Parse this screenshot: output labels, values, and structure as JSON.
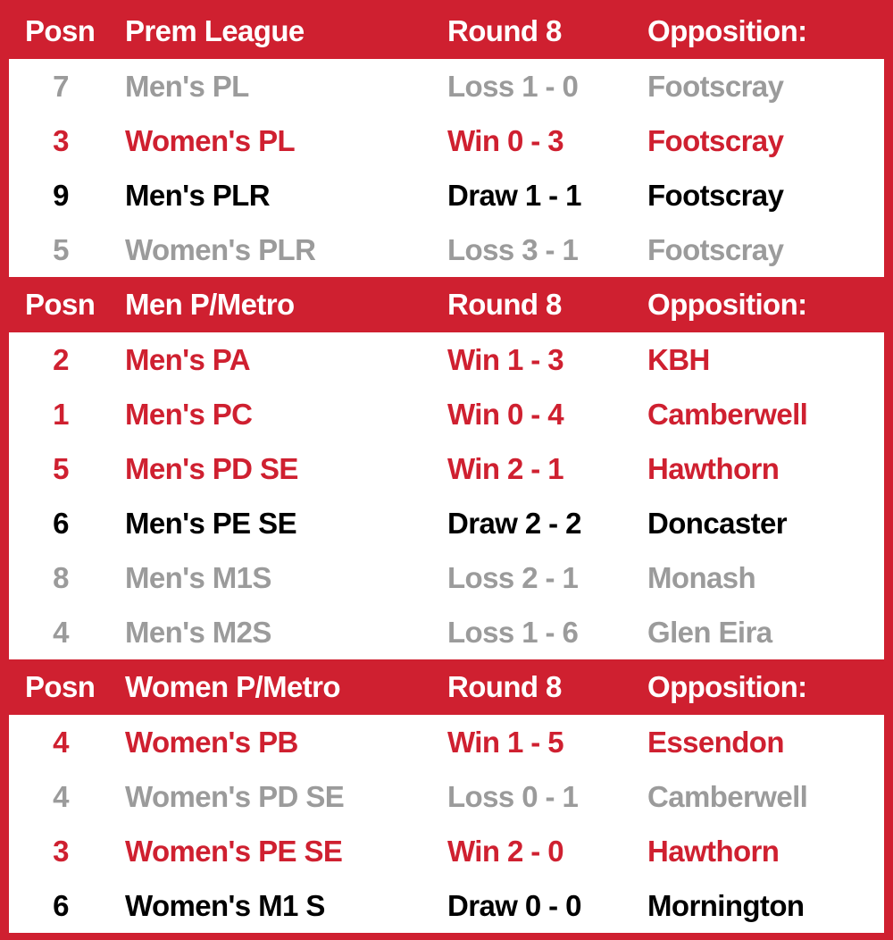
{
  "colors": {
    "brand_red": "#cf2030",
    "win": "#cf2030",
    "loss": "#9b9b9b",
    "draw": "#000000"
  },
  "sections": [
    {
      "header": {
        "posn": "Posn",
        "league": "Prem League",
        "round": "Round 8",
        "opposition": "Opposition:"
      },
      "rows": [
        {
          "posn": "7",
          "team": "Men's PL",
          "result": "Loss 1 - 0",
          "opposition": "Footscray",
          "status": "loss"
        },
        {
          "posn": "3",
          "team": "Women's PL",
          "result": "Win 0 - 3",
          "opposition": "Footscray",
          "status": "win"
        },
        {
          "posn": "9",
          "team": "Men's PLR",
          "result": "Draw 1 - 1",
          "opposition": "Footscray",
          "status": "draw"
        },
        {
          "posn": "5",
          "team": "Women's PLR",
          "result": "Loss 3 - 1",
          "opposition": "Footscray",
          "status": "loss"
        }
      ]
    },
    {
      "header": {
        "posn": "Posn",
        "league": "Men P/Metro",
        "round": "Round 8",
        "opposition": "Opposition:"
      },
      "rows": [
        {
          "posn": "2",
          "team": "Men's PA",
          "result": "Win 1 - 3",
          "opposition": "KBH",
          "status": "win"
        },
        {
          "posn": "1",
          "team": "Men's PC",
          "result": "Win 0 - 4",
          "opposition": "Camberwell",
          "status": "win"
        },
        {
          "posn": "5",
          "team": "Men's PD SE",
          "result": "Win 2 - 1",
          "opposition": "Hawthorn",
          "status": "win"
        },
        {
          "posn": "6",
          "team": "Men's PE SE",
          "result": "Draw 2 - 2",
          "opposition": "Doncaster",
          "status": "draw"
        },
        {
          "posn": "8",
          "team": "Men's M1S",
          "result": "Loss 2 - 1",
          "opposition": "Monash",
          "status": "loss"
        },
        {
          "posn": "4",
          "team": "Men's M2S",
          "result": "Loss 1 - 6",
          "opposition": "Glen Eira",
          "status": "loss"
        }
      ]
    },
    {
      "header": {
        "posn": "Posn",
        "league": "Women P/Metro",
        "round": "Round 8",
        "opposition": "Opposition:"
      },
      "rows": [
        {
          "posn": "4",
          "team": "Women's PB",
          "result": "Win 1 - 5",
          "opposition": "Essendon",
          "status": "win"
        },
        {
          "posn": "4",
          "team": "Women's PD SE",
          "result": "Loss 0 - 1",
          "opposition": "Camberwell",
          "status": "loss"
        },
        {
          "posn": "3",
          "team": "Women's PE SE",
          "result": "Win 2 - 0",
          "opposition": "Hawthorn",
          "status": "win"
        },
        {
          "posn": "6",
          "team": "Women's M1 S",
          "result": "Draw 0 - 0",
          "opposition": "Mornington",
          "status": "draw"
        }
      ]
    }
  ]
}
